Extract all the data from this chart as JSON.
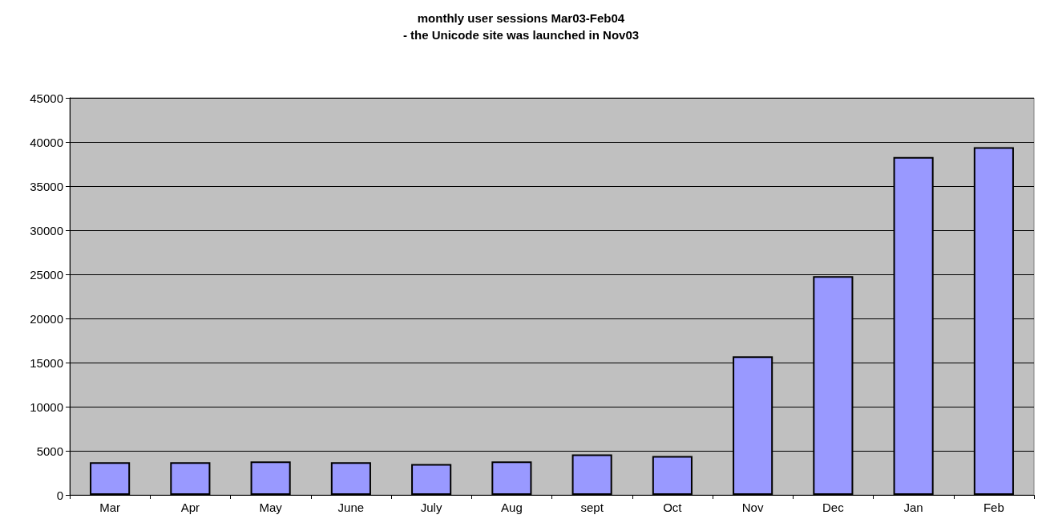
{
  "chart_data": {
    "type": "bar",
    "title": "monthly user sessions Mar03-Feb04",
    "subtitle": "- the Unicode site was launched in Nov03",
    "categories": [
      "Mar",
      "Apr",
      "May",
      "June",
      "July",
      "Aug",
      "sept",
      "Oct",
      "Nov",
      "Dec",
      "Jan",
      "Feb"
    ],
    "values": [
      3700,
      3700,
      3800,
      3700,
      3500,
      3800,
      4600,
      4400,
      15700,
      24800,
      38300,
      39400
    ],
    "color": "#9999ff",
    "ylim": [
      0,
      45000
    ],
    "yticks": [
      0,
      5000,
      10000,
      15000,
      20000,
      25000,
      30000,
      35000,
      40000,
      45000
    ],
    "grid": "y"
  }
}
